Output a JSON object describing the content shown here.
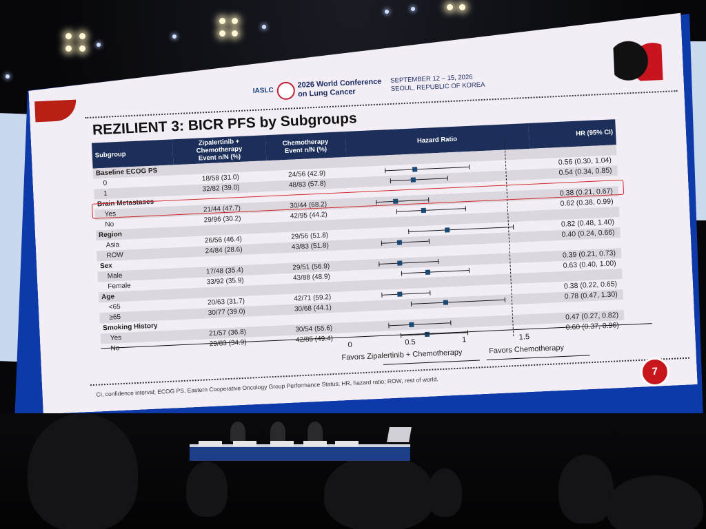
{
  "slide": {
    "org": "IASLC",
    "conference": [
      "2026 World Conference",
      "on Lung Cancer"
    ],
    "dates": [
      "SEPTEMBER 12 – 15, 2026",
      "SEOUL, REPUBLIC OF KOREA"
    ],
    "title": "REZILIENT 3: BICR PFS by Subgroups",
    "page_number": "7",
    "footnote": "CI, confidence interval; ECOG PS, Eastern Cooperative Oncology Group Performance Status; HR, hazard ratio; ROW, rest of world."
  },
  "table": {
    "headers": {
      "subgroup": "Subgroup",
      "zip": "Zipalertinib + Chemotherapy\nEvent n/N (%)",
      "chemo": "Chemotherapy\nEvent n/N (%)",
      "hr_plot": "Hazard Ratio",
      "hr_ci": "HR (95% CI)"
    },
    "rows": [
      {
        "label": "Baseline ECOG PS",
        "group": true
      },
      {
        "label": "0",
        "zip": "18/58 (31.0)",
        "chemo": "24/56 (42.9)",
        "hr_text": "0.56 (0.30, 1.04)",
        "hr": 0.56,
        "lo": 0.3,
        "hi": 1.04
      },
      {
        "label": "1",
        "zip": "32/82 (39.0)",
        "chemo": "48/83 (57.8)",
        "hr_text": "0.54 (0.34, 0.85)",
        "hr": 0.54,
        "lo": 0.34,
        "hi": 0.85
      },
      {
        "label": "Brain Metastases",
        "group": true
      },
      {
        "label": "Yes",
        "zip": "21/44 (47.7)",
        "chemo": "30/44 (68.2)",
        "hr_text": "0.38 (0.21, 0.67)",
        "hr": 0.38,
        "lo": 0.21,
        "hi": 0.67,
        "highlight": true
      },
      {
        "label": "No",
        "zip": "29/96 (30.2)",
        "chemo": "42/95 (44.2)",
        "hr_text": "0.62 (0.38, 0.99)",
        "hr": 0.62,
        "lo": 0.38,
        "hi": 0.99
      },
      {
        "label": "Region",
        "group": true
      },
      {
        "label": "Asia",
        "zip": "26/56 (46.4)",
        "chemo": "29/56 (51.8)",
        "hr_text": "0.82 (0.48, 1.40)",
        "hr": 0.82,
        "lo": 0.48,
        "hi": 1.4
      },
      {
        "label": "ROW",
        "zip": "24/84 (28.6)",
        "chemo": "43/83 (51.8)",
        "hr_text": "0.40 (0.24, 0.66)",
        "hr": 0.4,
        "lo": 0.24,
        "hi": 0.66
      },
      {
        "label": "Sex",
        "group": true
      },
      {
        "label": "Male",
        "zip": "17/48 (35.4)",
        "chemo": "29/51 (56.9)",
        "hr_text": "0.39 (0.21, 0.73)",
        "hr": 0.39,
        "lo": 0.21,
        "hi": 0.73
      },
      {
        "label": "Female",
        "zip": "33/92 (35.9)",
        "chemo": "43/88 (48.9)",
        "hr_text": "0.63 (0.40, 1.00)",
        "hr": 0.63,
        "lo": 0.4,
        "hi": 1.0
      },
      {
        "label": "Age",
        "group": true
      },
      {
        "label": "<65",
        "zip": "20/63 (31.7)",
        "chemo": "42/71 (59.2)",
        "hr_text": "0.38 (0.22, 0.65)",
        "hr": 0.38,
        "lo": 0.22,
        "hi": 0.65
      },
      {
        "label": "≥65",
        "zip": "30/77 (39.0)",
        "chemo": "30/68 (44.1)",
        "hr_text": "0.78 (0.47, 1.30)",
        "hr": 0.78,
        "lo": 0.47,
        "hi": 1.3
      },
      {
        "label": "Smoking History",
        "group": true
      },
      {
        "label": "Yes",
        "zip": "21/57 (36.8)",
        "chemo": "30/54 (55.6)",
        "hr_text": "0.47 (0.27, 0.82)",
        "hr": 0.47,
        "lo": 0.27,
        "hi": 0.82
      },
      {
        "label": "No",
        "zip": "29/83 (34.9)",
        "chemo": "42/85 (49.4)",
        "hr_text": "0.60 (0.37, 0.96)",
        "hr": 0.6,
        "lo": 0.37,
        "hi": 0.96
      }
    ]
  },
  "axis": {
    "ticks": [
      "0",
      "0.5",
      "1",
      "1.5"
    ],
    "favor_left": "Favors Zipalertinib + Chemotherapy",
    "favor_right": "Favors Chemotherapy"
  },
  "chart_data": {
    "type": "scatter",
    "title": "REZILIENT 3: BICR PFS by Subgroups",
    "xlabel": "Hazard Ratio",
    "xlim": [
      0,
      1.5
    ],
    "reference_line": 1,
    "series": [
      {
        "name": "Hazard Ratio",
        "x": [
          0.56,
          0.54,
          0.38,
          0.62,
          0.82,
          0.4,
          0.39,
          0.63,
          0.38,
          0.78,
          0.47,
          0.6
        ],
        "y": [
          "ECOG 0",
          "ECOG 1",
          "Brain Mets Yes",
          "Brain Mets No",
          "Asia",
          "ROW",
          "Male",
          "Female",
          "<65",
          "≥65",
          "Smoking Yes",
          "Smoking No"
        ],
        "ci_low": [
          0.3,
          0.34,
          0.21,
          0.38,
          0.48,
          0.24,
          0.21,
          0.4,
          0.22,
          0.47,
          0.27,
          0.37
        ],
        "ci_high": [
          1.04,
          0.85,
          0.67,
          0.99,
          1.4,
          0.66,
          0.73,
          1.0,
          0.65,
          1.3,
          0.82,
          0.96
        ]
      }
    ]
  }
}
